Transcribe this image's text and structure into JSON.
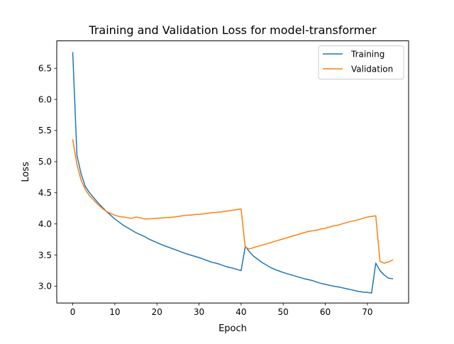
{
  "chart_data": {
    "type": "line",
    "title": "Training and Validation Loss for model-transformer",
    "xlabel": "Epoch",
    "ylabel": "Loss",
    "xlim": [
      -3.8,
      79.8
    ],
    "ylim": [
      2.73,
      6.94
    ],
    "xticks": [
      0,
      10,
      20,
      30,
      40,
      50,
      60,
      70
    ],
    "yticks": [
      3.0,
      3.5,
      4.0,
      4.5,
      5.0,
      5.5,
      6.0,
      6.5
    ],
    "ytick_labels": [
      "3.0",
      "3.5",
      "4.0",
      "4.5",
      "5.0",
      "5.5",
      "6.0",
      "6.5"
    ],
    "grid": false,
    "legend_position": "top-right",
    "series": [
      {
        "name": "Training",
        "color": "#1f77b4",
        "x": [
          0,
          1,
          2,
          3,
          4,
          5,
          6,
          7,
          8,
          9,
          10,
          11,
          12,
          13,
          14,
          15,
          16,
          17,
          18,
          19,
          20,
          21,
          22,
          23,
          24,
          25,
          26,
          27,
          28,
          29,
          30,
          31,
          32,
          33,
          34,
          35,
          36,
          37,
          38,
          39,
          40,
          41,
          42,
          43,
          44,
          45,
          46,
          47,
          48,
          49,
          50,
          51,
          52,
          53,
          54,
          55,
          56,
          57,
          58,
          59,
          60,
          61,
          62,
          63,
          64,
          65,
          66,
          67,
          68,
          69,
          70,
          71,
          72,
          73,
          74,
          75,
          76
        ],
        "y": [
          6.75,
          5.1,
          4.8,
          4.6,
          4.5,
          4.42,
          4.34,
          4.27,
          4.2,
          4.14,
          4.08,
          4.03,
          3.98,
          3.94,
          3.9,
          3.86,
          3.83,
          3.8,
          3.76,
          3.73,
          3.7,
          3.67,
          3.645,
          3.62,
          3.595,
          3.57,
          3.545,
          3.52,
          3.5,
          3.48,
          3.46,
          3.435,
          3.41,
          3.385,
          3.37,
          3.35,
          3.325,
          3.305,
          3.29,
          3.27,
          3.25,
          3.64,
          3.55,
          3.48,
          3.43,
          3.38,
          3.34,
          3.3,
          3.27,
          3.245,
          3.22,
          3.2,
          3.18,
          3.16,
          3.14,
          3.12,
          3.105,
          3.09,
          3.065,
          3.045,
          3.03,
          3.015,
          3.0,
          2.99,
          2.975,
          2.96,
          2.945,
          2.93,
          2.915,
          2.905,
          2.9,
          2.89,
          3.37,
          3.25,
          3.18,
          3.13,
          3.12
        ]
      },
      {
        "name": "Validation",
        "color": "#ff7f0e",
        "x": [
          0,
          1,
          2,
          3,
          4,
          5,
          6,
          7,
          8,
          9,
          10,
          11,
          12,
          13,
          14,
          15,
          16,
          17,
          18,
          19,
          20,
          21,
          22,
          23,
          24,
          25,
          26,
          27,
          28,
          29,
          30,
          31,
          32,
          33,
          34,
          35,
          36,
          37,
          38,
          39,
          40,
          41,
          42,
          43,
          44,
          45,
          46,
          47,
          48,
          49,
          50,
          51,
          52,
          53,
          54,
          55,
          56,
          57,
          58,
          59,
          60,
          61,
          62,
          63,
          64,
          65,
          66,
          67,
          68,
          69,
          70,
          71,
          72,
          73,
          74,
          75,
          76
        ],
        "y": [
          5.35,
          4.95,
          4.7,
          4.55,
          4.45,
          4.38,
          4.31,
          4.25,
          4.2,
          4.17,
          4.14,
          4.12,
          4.11,
          4.1,
          4.09,
          4.11,
          4.1,
          4.08,
          4.08,
          4.085,
          4.09,
          4.095,
          4.1,
          4.105,
          4.11,
          4.12,
          4.13,
          4.14,
          4.14,
          4.15,
          4.155,
          4.16,
          4.17,
          4.18,
          4.185,
          4.19,
          4.2,
          4.21,
          4.22,
          4.23,
          4.24,
          3.62,
          3.6,
          3.62,
          3.64,
          3.66,
          3.68,
          3.7,
          3.72,
          3.74,
          3.76,
          3.78,
          3.8,
          3.82,
          3.84,
          3.86,
          3.88,
          3.89,
          3.9,
          3.92,
          3.93,
          3.95,
          3.97,
          3.98,
          4.0,
          4.02,
          4.04,
          4.05,
          4.07,
          4.09,
          4.11,
          4.12,
          4.13,
          3.4,
          3.37,
          3.39,
          3.42
        ]
      }
    ]
  }
}
